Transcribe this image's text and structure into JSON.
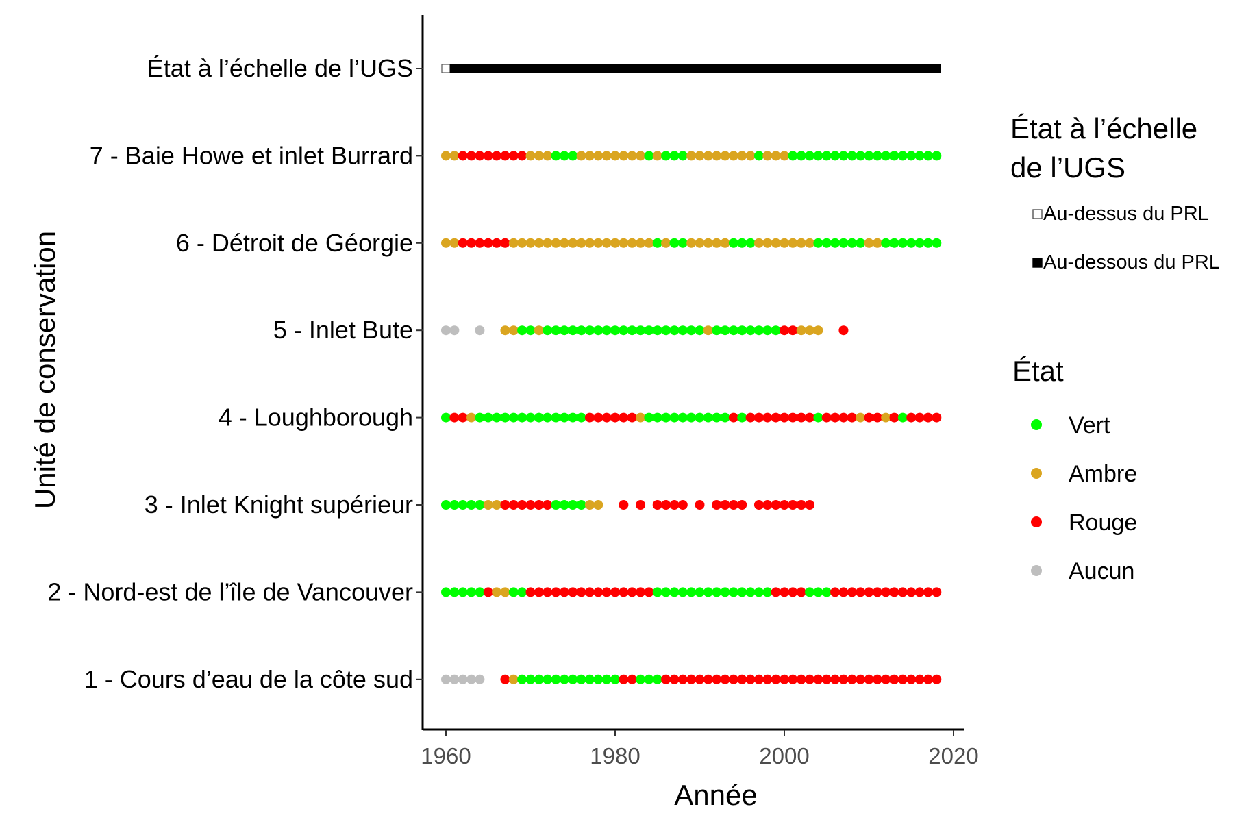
{
  "chart_data": {
    "type": "scatter",
    "xlabel": "Année",
    "ylabel": "Unité de conservation",
    "xlim": [
      1958.5,
      2019.5
    ],
    "xticks": [
      1960,
      1980,
      2000,
      2020
    ],
    "grid": false,
    "categories": [
      "1 - Cours d’eau de la côte sud",
      "2 - Nord-est de l’île de Vancouver",
      "3 - Inlet Knight supérieur",
      "4 - Loughborough",
      "5 - Inlet Bute",
      "6 - Détroit de Géorgie",
      "7 - Baie Howe et inlet Burrard",
      "État à l’échelle de l’UGS"
    ],
    "status_colors": {
      "Vert": "#00ff00",
      "Ambre": "#daa520",
      "Rouge": "#ff0000",
      "Aucun": "#bebebe",
      "Au-dessus du PRL": "#ffffff",
      "Au-dessous du PRL": "#000000"
    },
    "series": [
      {
        "category": "État à l’échelle de l’UGS",
        "marker": "square",
        "points": [
          {
            "from": 1960,
            "to": 1960,
            "status": "Au-dessus du PRL"
          },
          {
            "from": 1961,
            "to": 2018,
            "status": "Au-dessous du PRL"
          }
        ]
      },
      {
        "category": "7 - Baie Howe et inlet Burrard",
        "marker": "circle",
        "points": [
          {
            "from": 1960,
            "to": 1961,
            "status": "Ambre"
          },
          {
            "from": 1962,
            "to": 1969,
            "status": "Rouge"
          },
          {
            "from": 1970,
            "to": 1972,
            "status": "Ambre"
          },
          {
            "from": 1973,
            "to": 1975,
            "status": "Vert"
          },
          {
            "from": 1976,
            "to": 1983,
            "status": "Ambre"
          },
          {
            "from": 1984,
            "to": 1984,
            "status": "Vert"
          },
          {
            "from": 1985,
            "to": 1985,
            "status": "Ambre"
          },
          {
            "from": 1986,
            "to": 1988,
            "status": "Vert"
          },
          {
            "from": 1989,
            "to": 1996,
            "status": "Ambre"
          },
          {
            "from": 1997,
            "to": 1997,
            "status": "Vert"
          },
          {
            "from": 1998,
            "to": 2000,
            "status": "Ambre"
          },
          {
            "from": 2001,
            "to": 2018,
            "status": "Vert"
          }
        ]
      },
      {
        "category": "6 - Détroit de Géorgie",
        "marker": "circle",
        "points": [
          {
            "from": 1960,
            "to": 1961,
            "status": "Ambre"
          },
          {
            "from": 1962,
            "to": 1967,
            "status": "Rouge"
          },
          {
            "from": 1968,
            "to": 1984,
            "status": "Ambre"
          },
          {
            "from": 1985,
            "to": 1985,
            "status": "Vert"
          },
          {
            "from": 1986,
            "to": 1986,
            "status": "Ambre"
          },
          {
            "from": 1987,
            "to": 1988,
            "status": "Vert"
          },
          {
            "from": 1989,
            "to": 1993,
            "status": "Ambre"
          },
          {
            "from": 1994,
            "to": 1996,
            "status": "Vert"
          },
          {
            "from": 1997,
            "to": 2003,
            "status": "Ambre"
          },
          {
            "from": 2004,
            "to": 2009,
            "status": "Vert"
          },
          {
            "from": 2010,
            "to": 2011,
            "status": "Ambre"
          },
          {
            "from": 2012,
            "to": 2018,
            "status": "Vert"
          }
        ]
      },
      {
        "category": "5 - Inlet Bute",
        "marker": "circle",
        "points": [
          {
            "from": 1960,
            "to": 1961,
            "status": "Aucun"
          },
          {
            "from": 1964,
            "to": 1964,
            "status": "Aucun"
          },
          {
            "from": 1967,
            "to": 1968,
            "status": "Ambre"
          },
          {
            "from": 1969,
            "to": 1970,
            "status": "Vert"
          },
          {
            "from": 1971,
            "to": 1971,
            "status": "Ambre"
          },
          {
            "from": 1972,
            "to": 1990,
            "status": "Vert"
          },
          {
            "from": 1991,
            "to": 1991,
            "status": "Ambre"
          },
          {
            "from": 1992,
            "to": 1999,
            "status": "Vert"
          },
          {
            "from": 2000,
            "to": 2001,
            "status": "Rouge"
          },
          {
            "from": 2002,
            "to": 2004,
            "status": "Ambre"
          },
          {
            "from": 2007,
            "to": 2007,
            "status": "Rouge"
          }
        ]
      },
      {
        "category": "4 - Loughborough",
        "marker": "circle",
        "points": [
          {
            "from": 1960,
            "to": 1960,
            "status": "Vert"
          },
          {
            "from": 1961,
            "to": 1962,
            "status": "Rouge"
          },
          {
            "from": 1963,
            "to": 1963,
            "status": "Ambre"
          },
          {
            "from": 1964,
            "to": 1976,
            "status": "Vert"
          },
          {
            "from": 1977,
            "to": 1982,
            "status": "Rouge"
          },
          {
            "from": 1983,
            "to": 1983,
            "status": "Ambre"
          },
          {
            "from": 1984,
            "to": 1993,
            "status": "Vert"
          },
          {
            "from": 1994,
            "to": 1994,
            "status": "Rouge"
          },
          {
            "from": 1995,
            "to": 1995,
            "status": "Vert"
          },
          {
            "from": 1996,
            "to": 2003,
            "status": "Rouge"
          },
          {
            "from": 2004,
            "to": 2004,
            "status": "Vert"
          },
          {
            "from": 2005,
            "to": 2008,
            "status": "Rouge"
          },
          {
            "from": 2009,
            "to": 2009,
            "status": "Ambre"
          },
          {
            "from": 2010,
            "to": 2011,
            "status": "Rouge"
          },
          {
            "from": 2012,
            "to": 2012,
            "status": "Ambre"
          },
          {
            "from": 2013,
            "to": 2013,
            "status": "Rouge"
          },
          {
            "from": 2014,
            "to": 2014,
            "status": "Vert"
          },
          {
            "from": 2015,
            "to": 2018,
            "status": "Rouge"
          }
        ]
      },
      {
        "category": "3 - Inlet Knight supérieur",
        "marker": "circle",
        "points": [
          {
            "from": 1960,
            "to": 1964,
            "status": "Vert"
          },
          {
            "from": 1965,
            "to": 1966,
            "status": "Ambre"
          },
          {
            "from": 1967,
            "to": 1972,
            "status": "Rouge"
          },
          {
            "from": 1973,
            "to": 1976,
            "status": "Vert"
          },
          {
            "from": 1977,
            "to": 1978,
            "status": "Ambre"
          },
          {
            "from": 1981,
            "to": 1981,
            "status": "Rouge"
          },
          {
            "from": 1983,
            "to": 1983,
            "status": "Rouge"
          },
          {
            "from": 1985,
            "to": 1988,
            "status": "Rouge"
          },
          {
            "from": 1990,
            "to": 1990,
            "status": "Rouge"
          },
          {
            "from": 1992,
            "to": 1995,
            "status": "Rouge"
          },
          {
            "from": 1997,
            "to": 2003,
            "status": "Rouge"
          }
        ]
      },
      {
        "category": "2 - Nord-est de l’île de Vancouver",
        "marker": "circle",
        "points": [
          {
            "from": 1960,
            "to": 1964,
            "status": "Vert"
          },
          {
            "from": 1965,
            "to": 1965,
            "status": "Rouge"
          },
          {
            "from": 1966,
            "to": 1967,
            "status": "Ambre"
          },
          {
            "from": 1968,
            "to": 1969,
            "status": "Vert"
          },
          {
            "from": 1970,
            "to": 1984,
            "status": "Rouge"
          },
          {
            "from": 1985,
            "to": 1998,
            "status": "Vert"
          },
          {
            "from": 1999,
            "to": 2002,
            "status": "Rouge"
          },
          {
            "from": 2003,
            "to": 2005,
            "status": "Vert"
          },
          {
            "from": 2006,
            "to": 2018,
            "status": "Rouge"
          }
        ]
      },
      {
        "category": "1 - Cours d’eau de la côte sud",
        "marker": "circle",
        "points": [
          {
            "from": 1960,
            "to": 1964,
            "status": "Aucun"
          },
          {
            "from": 1967,
            "to": 1967,
            "status": "Rouge"
          },
          {
            "from": 1968,
            "to": 1968,
            "status": "Ambre"
          },
          {
            "from": 1969,
            "to": 1980,
            "status": "Vert"
          },
          {
            "from": 1981,
            "to": 1982,
            "status": "Rouge"
          },
          {
            "from": 1983,
            "to": 1985,
            "status": "Vert"
          },
          {
            "from": 1986,
            "to": 2018,
            "status": "Rouge"
          }
        ]
      }
    ],
    "legends": [
      {
        "title_lines": [
          "État à l’échelle",
          "de l’UGS"
        ],
        "marker": "square",
        "entries": [
          {
            "label": "Au-dessus du PRL",
            "status": "Au-dessus du PRL"
          },
          {
            "label": "Au-dessous du PRL",
            "status": "Au-dessous du PRL"
          }
        ]
      },
      {
        "title_lines": [
          "État"
        ],
        "marker": "circle",
        "entries": [
          {
            "label": "Vert",
            "status": "Vert"
          },
          {
            "label": "Ambre",
            "status": "Ambre"
          },
          {
            "label": "Rouge",
            "status": "Rouge"
          },
          {
            "label": "Aucun",
            "status": "Aucun"
          }
        ]
      }
    ],
    "legend_position": "right"
  }
}
